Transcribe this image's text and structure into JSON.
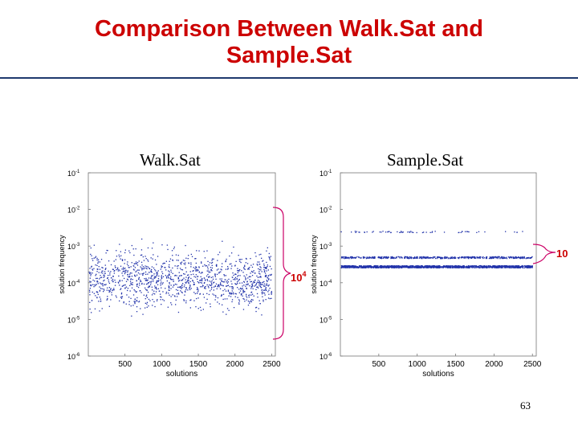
{
  "slide": {
    "title_line1": "Comparison Between Walk.Sat and",
    "title_line2": "Sample.Sat",
    "page_number": "63"
  },
  "colors": {
    "title": "#cc0000",
    "rule": "#1f3a6e",
    "points": "#2233aa",
    "bracket": "#cc0066",
    "annotation": "#cc0000"
  },
  "chart_data": [
    {
      "type": "scatter",
      "title": "Walk.Sat",
      "xlabel": "solutions",
      "ylabel": "solution frequency",
      "xlim": [
        0,
        2550
      ],
      "yscale": "log",
      "ylim_exponent": [
        -6,
        -1
      ],
      "xticks": [
        500,
        1000,
        1500,
        2000,
        2500
      ],
      "yticks": [
        {
          "base": "10",
          "exp": "-1"
        },
        {
          "base": "10",
          "exp": "-2"
        },
        {
          "base": "10",
          "exp": "-3"
        },
        {
          "base": "10",
          "exp": "-4"
        },
        {
          "base": "10",
          "exp": "-5"
        },
        {
          "base": "10",
          "exp": "-6"
        }
      ],
      "distribution": "widely scattered, densest between 10^-3 and 10^-5",
      "annotation": {
        "base": "10",
        "exp": "4"
      }
    },
    {
      "type": "scatter",
      "title": "Sample.Sat",
      "xlabel": "solutions",
      "ylabel": "solution frequency",
      "xlim": [
        0,
        2550
      ],
      "yscale": "log",
      "ylim_exponent": [
        -6,
        -1
      ],
      "xticks": [
        500,
        1000,
        1500,
        2000,
        2500
      ],
      "yticks": [
        {
          "base": "10",
          "exp": "-1"
        },
        {
          "base": "10",
          "exp": "-2"
        },
        {
          "base": "10",
          "exp": "-3"
        },
        {
          "base": "10",
          "exp": "-4"
        },
        {
          "base": "10",
          "exp": "-5"
        },
        {
          "base": "10",
          "exp": "-6"
        }
      ],
      "bands_exponent": [
        -2.6,
        -3.3,
        -3.55
      ],
      "annotation": {
        "text": "10"
      }
    }
  ]
}
